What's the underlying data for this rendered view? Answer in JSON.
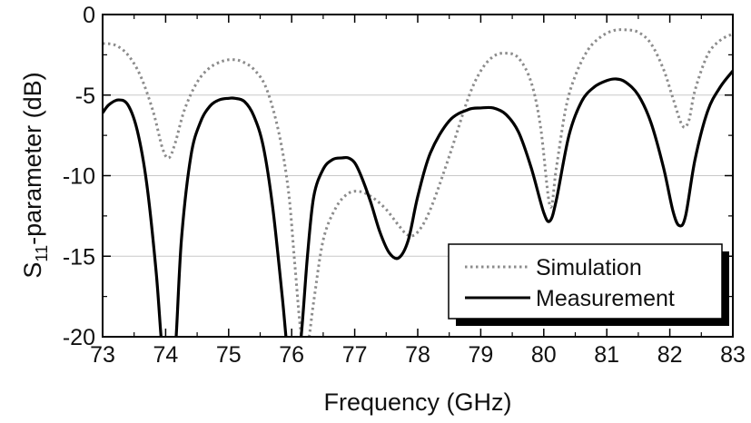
{
  "chart_data": {
    "type": "line",
    "title": "",
    "xlabel": "Frequency (GHz)",
    "ylabel": "S11-parameter (dB)",
    "ylabel_parts": {
      "base": "S",
      "sub": "11",
      "rest": "-parameter (dB)"
    },
    "xlim": [
      73,
      83
    ],
    "ylim": [
      -20,
      0
    ],
    "xticks": [
      "73",
      "74",
      "75",
      "76",
      "77",
      "78",
      "79",
      "80",
      "81",
      "82",
      "83"
    ],
    "yticks": [
      "0",
      "-5",
      "-10",
      "-15",
      "-20"
    ],
    "grid": "horizontal",
    "legend_position": "bottom-right",
    "series": [
      {
        "name": "Simulation",
        "style": "dotted",
        "color": "#8c8c8c",
        "x": [
          73.0,
          73.2,
          73.4,
          73.6,
          73.8,
          73.95,
          74.05,
          74.15,
          74.3,
          74.5,
          74.7,
          74.9,
          75.05,
          75.2,
          75.4,
          75.6,
          75.8,
          75.95,
          76.05,
          76.15,
          76.25,
          76.35,
          76.5,
          76.7,
          76.9,
          77.1,
          77.3,
          77.5,
          77.7,
          77.85,
          78.0,
          78.2,
          78.5,
          78.8,
          79.0,
          79.2,
          79.4,
          79.6,
          79.8,
          79.95,
          80.1,
          80.2,
          80.35,
          80.5,
          80.7,
          80.9,
          81.1,
          81.3,
          81.5,
          81.7,
          81.9,
          82.05,
          82.2,
          82.3,
          82.4,
          82.6,
          82.8,
          83.0
        ],
        "y": [
          -1.8,
          -1.9,
          -2.5,
          -3.8,
          -6.0,
          -8.3,
          -8.9,
          -8.0,
          -5.9,
          -4.2,
          -3.3,
          -2.9,
          -2.8,
          -2.9,
          -3.4,
          -4.6,
          -7.4,
          -11.0,
          -15.5,
          -19.8,
          -20.5,
          -17.8,
          -14.0,
          -12.0,
          -11.1,
          -11.0,
          -11.4,
          -12.1,
          -13.1,
          -13.7,
          -13.5,
          -12.1,
          -8.8,
          -5.2,
          -3.5,
          -2.6,
          -2.4,
          -2.7,
          -4.2,
          -7.0,
          -11.9,
          -9.5,
          -5.8,
          -3.8,
          -2.2,
          -1.4,
          -1.0,
          -0.95,
          -1.1,
          -1.8,
          -3.4,
          -5.2,
          -6.9,
          -6.6,
          -4.7,
          -2.5,
          -1.6,
          -1.2
        ]
      },
      {
        "name": "Measurement",
        "style": "solid",
        "color": "#000000",
        "x": [
          73.0,
          73.1,
          73.25,
          73.4,
          73.55,
          73.7,
          73.85,
          73.95,
          74.05,
          74.15,
          74.25,
          74.4,
          74.55,
          74.7,
          74.85,
          75.0,
          75.1,
          75.25,
          75.4,
          75.55,
          75.7,
          75.85,
          75.95,
          76.05,
          76.15,
          76.25,
          76.35,
          76.5,
          76.65,
          76.8,
          76.9,
          77.0,
          77.1,
          77.25,
          77.4,
          77.55,
          77.7,
          77.85,
          78.0,
          78.2,
          78.5,
          78.8,
          79.0,
          79.2,
          79.4,
          79.6,
          79.8,
          80.0,
          80.1,
          80.2,
          80.4,
          80.6,
          80.8,
          81.0,
          81.15,
          81.3,
          81.5,
          81.7,
          81.9,
          82.05,
          82.15,
          82.25,
          82.4,
          82.6,
          82.8,
          83.0
        ],
        "y": [
          -6.1,
          -5.6,
          -5.3,
          -5.6,
          -7.2,
          -10.5,
          -16.0,
          -21.0,
          -23.0,
          -21.0,
          -14.0,
          -8.8,
          -6.7,
          -5.7,
          -5.3,
          -5.2,
          -5.2,
          -5.4,
          -6.3,
          -8.2,
          -12.0,
          -17.5,
          -21.5,
          -23.0,
          -20.0,
          -15.0,
          -11.3,
          -9.6,
          -9.0,
          -8.9,
          -8.9,
          -9.2,
          -10.0,
          -11.6,
          -13.5,
          -14.8,
          -15.1,
          -14.0,
          -11.3,
          -8.6,
          -6.6,
          -5.9,
          -5.8,
          -5.8,
          -6.2,
          -7.3,
          -9.5,
          -12.3,
          -12.8,
          -11.5,
          -7.5,
          -5.4,
          -4.5,
          -4.1,
          -4.0,
          -4.2,
          -5.0,
          -6.7,
          -9.5,
          -12.2,
          -13.1,
          -12.5,
          -9.0,
          -6.0,
          -4.5,
          -3.5
        ]
      }
    ]
  }
}
